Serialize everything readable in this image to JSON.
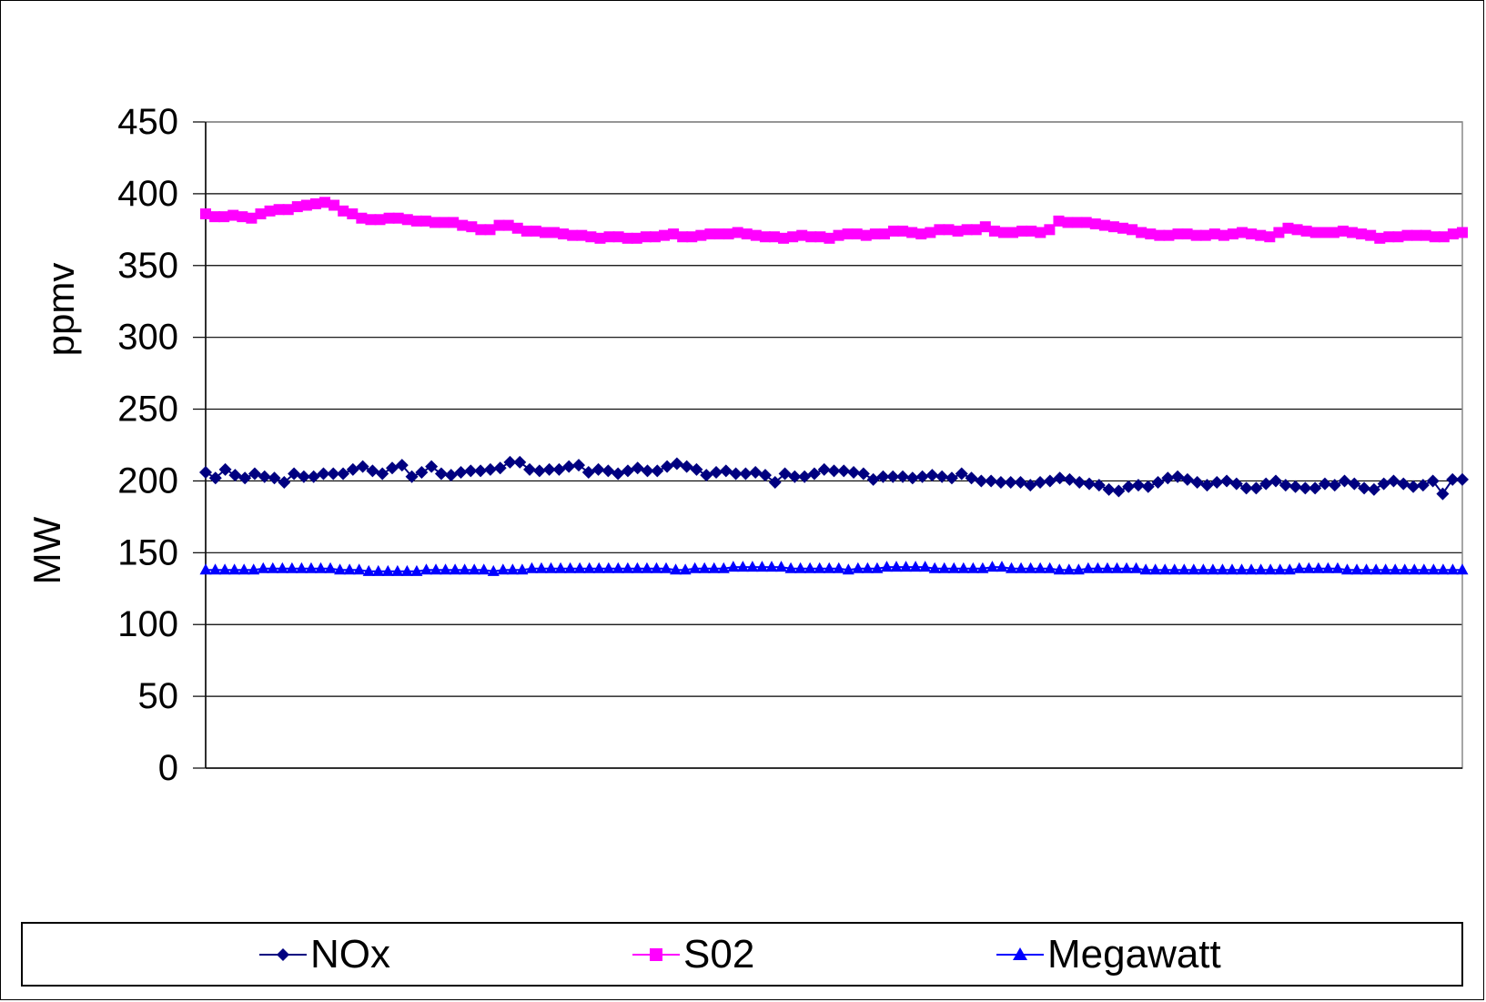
{
  "chart_data": {
    "type": "line",
    "title": "",
    "ylabel_top": "ppmv",
    "ylabel_bottom": "MW",
    "xlabel": "",
    "ylim": [
      0,
      450
    ],
    "yticks": [
      "0",
      "50",
      "100",
      "150",
      "200",
      "250",
      "300",
      "350",
      "400",
      "450"
    ],
    "grid": true,
    "legend_position": "bottom",
    "series": [
      {
        "name": "NOx",
        "color": "#000080",
        "marker": "diamond",
        "values": [
          206,
          202,
          208,
          204,
          202,
          205,
          203,
          202,
          199,
          205,
          203,
          203,
          205,
          205,
          205,
          208,
          210,
          207,
          205,
          209,
          211,
          203,
          206,
          210,
          205,
          204,
          206,
          207,
          207,
          208,
          209,
          213,
          213,
          208,
          207,
          208,
          208,
          210,
          211,
          206,
          208,
          207,
          205,
          207,
          209,
          207,
          207,
          210,
          212,
          210,
          208,
          204,
          206,
          207,
          205,
          205,
          206,
          204,
          199,
          205,
          203,
          203,
          205,
          208,
          207,
          207,
          206,
          205,
          201,
          203,
          203,
          203,
          202,
          203,
          204,
          203,
          202,
          205,
          202,
          200,
          200,
          199,
          199,
          199,
          197,
          199,
          200,
          202,
          201,
          199,
          198,
          197,
          194,
          193,
          196,
          197,
          196,
          199,
          202,
          203,
          201,
          199,
          197,
          199,
          200,
          198,
          195,
          195,
          198,
          200,
          197,
          196,
          195,
          195,
          198,
          197,
          200,
          198,
          195,
          194,
          198,
          200,
          198,
          196,
          197,
          200,
          191,
          201,
          201
        ]
      },
      {
        "name": "S02",
        "color": "#ff00ff",
        "marker": "square",
        "values": [
          386,
          384,
          384,
          385,
          384,
          383,
          386,
          388,
          389,
          389,
          391,
          392,
          393,
          394,
          392,
          388,
          386,
          383,
          382,
          382,
          383,
          383,
          382,
          381,
          381,
          380,
          380,
          380,
          378,
          377,
          375,
          375,
          378,
          378,
          376,
          374,
          374,
          373,
          373,
          372,
          371,
          371,
          370,
          369,
          370,
          370,
          369,
          369,
          370,
          370,
          371,
          372,
          370,
          370,
          371,
          372,
          372,
          372,
          373,
          372,
          371,
          370,
          370,
          369,
          370,
          371,
          370,
          370,
          369,
          371,
          372,
          372,
          371,
          372,
          372,
          374,
          374,
          373,
          372,
          373,
          375,
          375,
          374,
          375,
          375,
          377,
          374,
          373,
          373,
          374,
          374,
          373,
          375,
          381,
          380,
          380,
          380,
          379,
          378,
          377,
          376,
          375,
          373,
          372,
          371,
          371,
          372,
          372,
          371,
          371,
          372,
          371,
          372,
          373,
          372,
          371,
          370,
          373,
          376,
          375,
          374,
          373,
          373,
          373,
          374,
          373,
          372,
          371,
          369,
          370,
          370,
          371,
          371,
          371,
          370,
          370,
          372,
          373
        ]
      },
      {
        "name": "Megawatt",
        "color": "#0000ff",
        "marker": "triangle",
        "values": [
          138,
          138,
          138,
          138,
          138,
          138,
          139,
          139,
          139,
          139,
          139,
          139,
          139,
          139,
          138,
          138,
          138,
          137,
          137,
          137,
          137,
          137,
          137,
          138,
          138,
          138,
          138,
          138,
          138,
          138,
          137,
          138,
          138,
          138,
          139,
          139,
          139,
          139,
          139,
          139,
          139,
          139,
          139,
          139,
          139,
          139,
          139,
          139,
          139,
          138,
          138,
          139,
          139,
          139,
          139,
          140,
          140,
          140,
          140,
          140,
          140,
          139,
          139,
          139,
          139,
          139,
          139,
          138,
          139,
          139,
          139,
          140,
          140,
          140,
          140,
          140,
          139,
          139,
          139,
          139,
          139,
          139,
          140,
          140,
          139,
          139,
          139,
          139,
          139,
          138,
          138,
          138,
          139,
          139,
          139,
          139,
          139,
          139,
          138,
          138,
          138,
          138,
          138,
          138,
          138,
          138,
          138,
          138,
          138,
          138,
          138,
          138,
          138,
          138,
          139,
          139,
          139,
          139,
          139,
          138,
          138,
          138,
          138,
          138,
          138,
          138,
          138,
          138,
          138,
          138,
          138,
          138
        ]
      }
    ]
  }
}
